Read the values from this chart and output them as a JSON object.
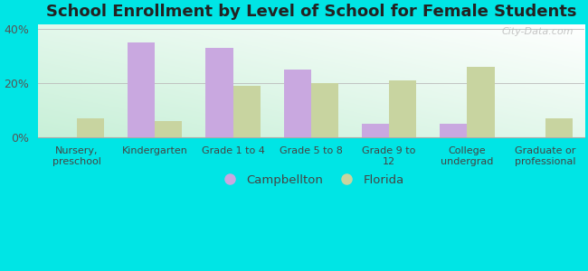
{
  "title": "School Enrollment by Level of School for Female Students",
  "categories": [
    "Nursery,\npreschool",
    "Kindergarten",
    "Grade 1 to 4",
    "Grade 5 to 8",
    "Grade 9 to\n12",
    "College\nundergrad",
    "Graduate or\nprofessional"
  ],
  "campbellton": [
    0,
    35,
    33,
    25,
    5,
    5,
    0
  ],
  "florida": [
    7,
    6,
    19,
    20,
    21,
    26,
    7
  ],
  "campbellton_color": "#c9a8e0",
  "florida_color": "#c8d4a0",
  "background_color": "#00e5e5",
  "ylim": [
    0,
    42
  ],
  "yticks": [
    0,
    20,
    40
  ],
  "ytick_labels": [
    "0%",
    "20%",
    "40%"
  ],
  "bar_width": 0.35,
  "legend_labels": [
    "Campbellton",
    "Florida"
  ],
  "watermark": "City-Data.com"
}
